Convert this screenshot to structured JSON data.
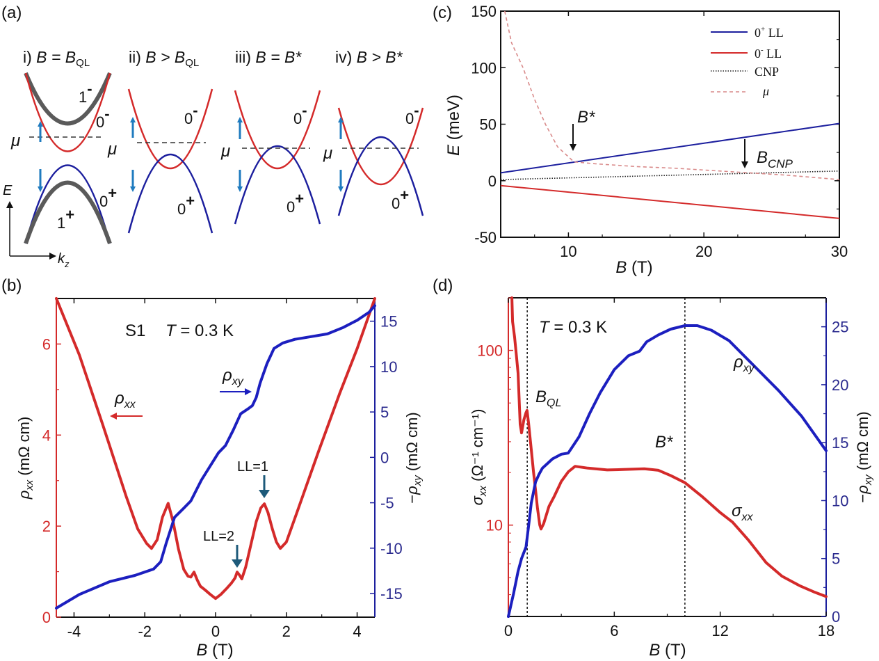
{
  "figure": {
    "panel_labels": [
      "(a)",
      "(b)",
      "(c)",
      "(d)"
    ]
  },
  "chart_data": [
    {
      "panel": "(a)",
      "type": "diagram",
      "subpanels": [
        {
          "title_prefix": "i) ",
          "title_main": "B = B",
          "title_sub": "QL",
          "bands": [
            "1⁻",
            "0⁻",
            "0⁺",
            "1⁺"
          ]
        },
        {
          "title_prefix": "ii) ",
          "title_main": "B > B",
          "title_sub": "QL",
          "bands": [
            "0⁻",
            "0⁺"
          ]
        },
        {
          "title_prefix": "iii) ",
          "title_main": "B = B*",
          "title_sub": "",
          "bands": [
            "0⁻",
            "0⁺"
          ]
        },
        {
          "title_prefix": "iv) ",
          "title_main": "B > B*",
          "title_sub": "",
          "bands": [
            "0⁻",
            "0⁺"
          ]
        }
      ],
      "mu_label": "μ",
      "axis_e": "E",
      "axis_k": "k",
      "axis_k_sub": "z",
      "band_labels": {
        "one_minus": "1",
        "one_plus": "1",
        "zero_minus": "0",
        "zero_plus": "0",
        "minus": "-",
        "plus": "+"
      },
      "colors": {
        "upper": "#d42a2a",
        "lower": "#1c1f9e",
        "gray": "#5a5a5a",
        "arrow": "#1f7bbf"
      }
    },
    {
      "panel": "(b)",
      "type": "line",
      "xlabel": "B (T)",
      "xlabel_main": "B",
      "xlabel_unit": " (T)",
      "xlim": [
        -4.5,
        4.5
      ],
      "xticks": [
        -4,
        -2,
        0,
        2,
        4
      ],
      "ylabel_left": "ρxx (mΩ cm)",
      "ylabel_left_unit": " (mΩ cm)",
      "ylim_left": [
        0,
        7
      ],
      "yticks_left": [
        0,
        2,
        4,
        6
      ],
      "ylabel_right": "−ρxy (mΩ cm)",
      "ylabel_right_unit": " (mΩ cm)",
      "ylim_right": [
        -17.6,
        17.5
      ],
      "yticks_right": [
        -15,
        -10,
        -5,
        0,
        5,
        10,
        15
      ],
      "annotation_sample": "S1",
      "annotation_temp": "T = 0.3 K",
      "annotations": [
        "LL=1",
        "LL=2"
      ],
      "ll_markers": [
        {
          "label": "LL=1",
          "B": 1.38,
          "rho": 2.49
        },
        {
          "label": "LL=2",
          "B": 0.61,
          "rho": 0.99
        }
      ],
      "series": [
        {
          "name": "ρxx",
          "axis": "left",
          "color": "#d42a2a",
          "x": [
            -4.5,
            -3.85,
            -3.19,
            -2.53,
            -2.2,
            -1.95,
            -1.81,
            -1.65,
            -1.5,
            -1.34,
            -1.2,
            -1.05,
            -0.9,
            -0.78,
            -0.7,
            -0.61,
            -0.52,
            -0.43,
            -0.3,
            -0.15,
            0,
            0.15,
            0.3,
            0.45,
            0.55,
            0.61,
            0.68,
            0.74,
            0.85,
            1.0,
            1.15,
            1.28,
            1.38,
            1.48,
            1.6,
            1.72,
            1.83,
            2.0,
            2.3,
            2.9,
            3.5,
            4.0,
            4.5
          ],
          "y": [
            7.0,
            5.76,
            4.23,
            2.66,
            1.94,
            1.62,
            1.51,
            1.7,
            2.2,
            2.5,
            2.1,
            1.5,
            1.05,
            0.9,
            0.88,
            0.99,
            0.82,
            0.68,
            0.6,
            0.5,
            0.41,
            0.5,
            0.62,
            0.75,
            0.86,
            0.99,
            0.92,
            0.84,
            1.1,
            1.6,
            2.1,
            2.4,
            2.49,
            2.3,
            1.95,
            1.65,
            1.51,
            1.65,
            2.3,
            3.62,
            4.9,
            5.9,
            7.0
          ]
        },
        {
          "name": "ρxy",
          "axis": "right",
          "color": "#1c1fbf",
          "x": [
            -4.5,
            -3.85,
            -3.0,
            -2.28,
            -1.75,
            -1.55,
            -1.4,
            -1.16,
            -0.9,
            -0.7,
            -0.4,
            0.08,
            0.28,
            0.5,
            0.71,
            0.9,
            1.04,
            1.15,
            1.26,
            1.45,
            1.65,
            1.9,
            2.24,
            2.7,
            3.16,
            3.6,
            4.0,
            4.34,
            4.5
          ],
          "y": [
            -16.6,
            -15.1,
            -13.7,
            -13.0,
            -12.3,
            -11.5,
            -9.5,
            -6.6,
            -5.6,
            -4.8,
            -2.5,
            0.5,
            1.3,
            3.0,
            4.8,
            5.3,
            5.7,
            6.6,
            8.2,
            10.3,
            12.0,
            12.6,
            13.0,
            13.3,
            13.6,
            14.3,
            15.1,
            16.0,
            16.7
          ]
        }
      ],
      "legend_labels": [
        {
          "text": "ρ",
          "sub": "xx",
          "arrow": "left"
        },
        {
          "text": "ρ",
          "sub": "xy",
          "arrow": "right"
        }
      ]
    },
    {
      "panel": "(c)",
      "type": "line",
      "xlabel": "B (T)",
      "xlim": [
        5,
        30
      ],
      "xticks": [
        10,
        20,
        30
      ],
      "ylabel": "E (meV)",
      "ylabel_unit": " (meV)",
      "ylim": [
        -50,
        150
      ],
      "yticks": [
        -50,
        0,
        50,
        100,
        150
      ],
      "legend_position": "top-right",
      "series": [
        {
          "name": "0⁺ LL",
          "style": "solid",
          "color": "#1c1f9e",
          "x": [
            5,
            30
          ],
          "y": [
            7,
            50.6
          ]
        },
        {
          "name": "0⁻ LL",
          "style": "solid",
          "color": "#d42a2a",
          "x": [
            5,
            30
          ],
          "y": [
            -4.3,
            -33.3
          ]
        },
        {
          "name": "CNP",
          "style": "dotted",
          "color": "#222222",
          "x": [
            5,
            30
          ],
          "y": [
            1,
            8.6
          ]
        },
        {
          "name": "μ",
          "style": "dashed",
          "color": "#d98a8a",
          "x": [
            5.3,
            5.8,
            6.65,
            7.5,
            8.3,
            9.2,
            10.4,
            12,
            15,
            18,
            22,
            26,
            30
          ],
          "y": [
            150,
            122,
            100,
            72,
            50,
            30,
            16.7,
            15,
            12.5,
            11,
            8,
            5,
            1
          ]
        }
      ],
      "annotations": [
        {
          "text": "B*",
          "B": 10.4
        },
        {
          "text": "B",
          "sub": "CNP",
          "B": 23.0
        }
      ],
      "legend_entries": [
        {
          "base": "0",
          "sup": "+",
          "rest": " LL"
        },
        {
          "base": "0",
          "sup": "-",
          "rest": " LL"
        },
        {
          "base": "CNP",
          "sup": "",
          "rest": ""
        },
        {
          "base": "μ",
          "sup": "",
          "rest": ""
        }
      ]
    },
    {
      "panel": "(d)",
      "type": "line",
      "xlabel": "B (T)",
      "xlim": [
        0,
        18
      ],
      "xticks": [
        0,
        6,
        12,
        18
      ],
      "ylabel_left": "σxx (Ω⁻¹ cm⁻¹)",
      "ylabel_left_unit": " (Ω⁻¹ cm⁻¹)",
      "yscale_left": "log",
      "ylim_left": [
        3,
        200
      ],
      "yticks_left": [
        10,
        100
      ],
      "ylabel_right": "−ρxy (mΩ cm)",
      "ylabel_right_unit": " (mΩ cm)",
      "ylim_right": [
        0,
        27.5
      ],
      "yticks_right": [
        0,
        5,
        10,
        15,
        20,
        25
      ],
      "annotation_temp": "T = 0.3 K",
      "vlines": [
        {
          "label": "B",
          "sub": "QL",
          "B": 1.07
        },
        {
          "label": "B*",
          "sub": "",
          "B": 10.0
        }
      ],
      "series": [
        {
          "name": "σxx",
          "axis": "left",
          "color": "#d42a2a",
          "x": [
            0.2,
            0.24,
            0.35,
            0.45,
            0.55,
            0.67,
            0.75,
            0.88,
            1.0,
            1.06,
            1.15,
            1.3,
            1.42,
            1.55,
            1.65,
            1.78,
            1.85,
            2.0,
            2.3,
            2.6,
            3.0,
            3.4,
            3.78,
            4.5,
            5.6,
            6.5,
            7.7,
            8.5,
            9.2,
            10.0,
            11.0,
            12.0,
            12.7,
            13.6,
            14.6,
            15.5,
            16.5,
            17.3,
            18.0
          ],
          "y": [
            200,
            146,
            120,
            95,
            74,
            37.8,
            33.7,
            40,
            44,
            45.3,
            38,
            27,
            20.3,
            15.5,
            12.5,
            10.0,
            9.5,
            10.2,
            12.8,
            14.6,
            17.8,
            20.2,
            21.7,
            21.2,
            20.7,
            20.8,
            21,
            20.6,
            19.2,
            17.5,
            14.5,
            11.8,
            10.4,
            8.2,
            6.1,
            5.1,
            4.5,
            4.15,
            3.9
          ]
        },
        {
          "name": "ρxy",
          "axis": "right",
          "color": "#1c1fbf",
          "x": [
            0,
            0.3,
            0.55,
            0.75,
            1.0,
            1.14,
            1.3,
            1.54,
            1.75,
            1.93,
            2.5,
            3.0,
            3.39,
            4.0,
            4.6,
            5.2,
            6.0,
            6.8,
            7.44,
            7.83,
            8.5,
            9.2,
            10.0,
            10.7,
            11.5,
            12.5,
            14.0,
            15.3,
            16.6,
            18.0
          ],
          "y": [
            0,
            2.0,
            3.9,
            5.0,
            6.0,
            7.7,
            9.8,
            11.6,
            12.3,
            12.8,
            13.6,
            14.0,
            14.1,
            15.5,
            17.5,
            19.3,
            21.3,
            22.5,
            22.9,
            23.7,
            24.3,
            24.8,
            25.1,
            25.1,
            24.7,
            23.8,
            21.5,
            19.5,
            17.3,
            14.3
          ]
        }
      ],
      "curve_labels": [
        {
          "text": "ρ",
          "sub": "xy"
        },
        {
          "text": "σ",
          "sub": "xx"
        }
      ]
    }
  ]
}
